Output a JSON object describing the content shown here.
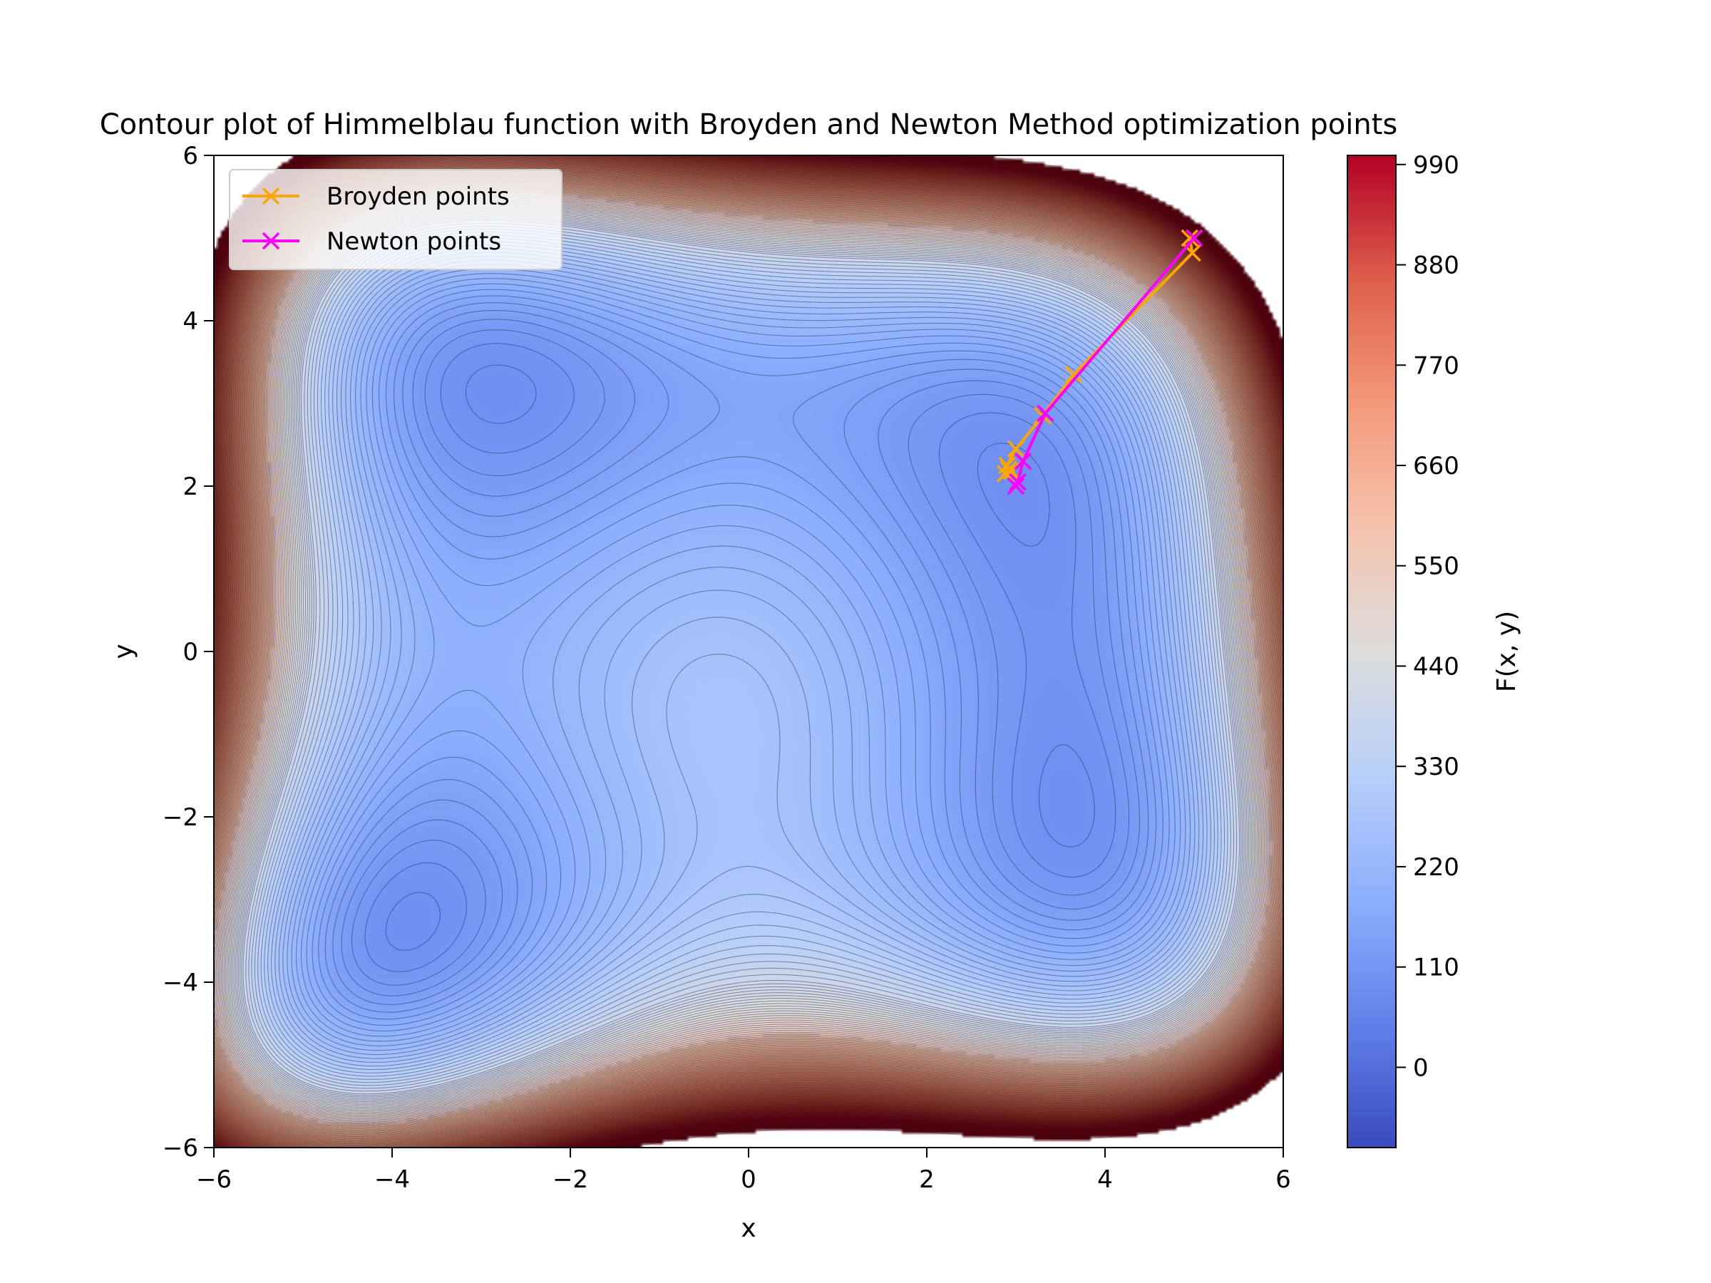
{
  "chart_data": {
    "type": "contour",
    "title": "Contour plot of Himmelblau function with Broyden and Newton Method optimization points",
    "xlabel": "x",
    "ylabel": "y",
    "xlim": [
      -6,
      6
    ],
    "ylim": [
      -6,
      6
    ],
    "x_ticks": [
      -6,
      -4,
      -2,
      0,
      2,
      4,
      6
    ],
    "y_ticks": [
      -6,
      -4,
      -2,
      0,
      2,
      4,
      6
    ],
    "x_tick_labels": [
      "−6",
      "−4",
      "−2",
      "0",
      "2",
      "4",
      "6"
    ],
    "y_tick_labels": [
      "−6",
      "−4",
      "−2",
      "0",
      "2",
      "4",
      "6"
    ],
    "function": "(x^2 + y - 11)^2 + (x + y^2 - 7)^2",
    "level_range": [
      -88,
      1000
    ],
    "colormap": "coolwarm",
    "colorbar": {
      "label": "F(x, y)",
      "ticks": [
        0,
        110,
        220,
        330,
        440,
        550,
        660,
        770,
        880,
        990
      ],
      "tick_labels": [
        "0",
        "110",
        "220",
        "330",
        "440",
        "550",
        "660",
        "770",
        "880",
        "990"
      ],
      "range": [
        -88,
        1000
      ]
    },
    "legend": {
      "position": "upper-left"
    },
    "series": [
      {
        "name": "Broyden points",
        "color": "#ffa500",
        "marker": "x",
        "points": [
          [
            4.95,
            5.0
          ],
          [
            4.98,
            4.82
          ],
          [
            3.65,
            3.35
          ],
          [
            3.3,
            2.85
          ],
          [
            3.0,
            2.45
          ],
          [
            2.9,
            2.25
          ],
          [
            2.88,
            2.15
          ],
          [
            2.92,
            2.2
          ],
          [
            2.95,
            2.18
          ]
        ]
      },
      {
        "name": "Newton points",
        "color": "#ff00ff",
        "marker": "x",
        "points": [
          [
            5.0,
            5.0
          ],
          [
            3.33,
            2.88
          ],
          [
            3.08,
            2.3
          ],
          [
            3.02,
            2.05
          ],
          [
            3.0,
            2.0
          ]
        ]
      }
    ]
  }
}
